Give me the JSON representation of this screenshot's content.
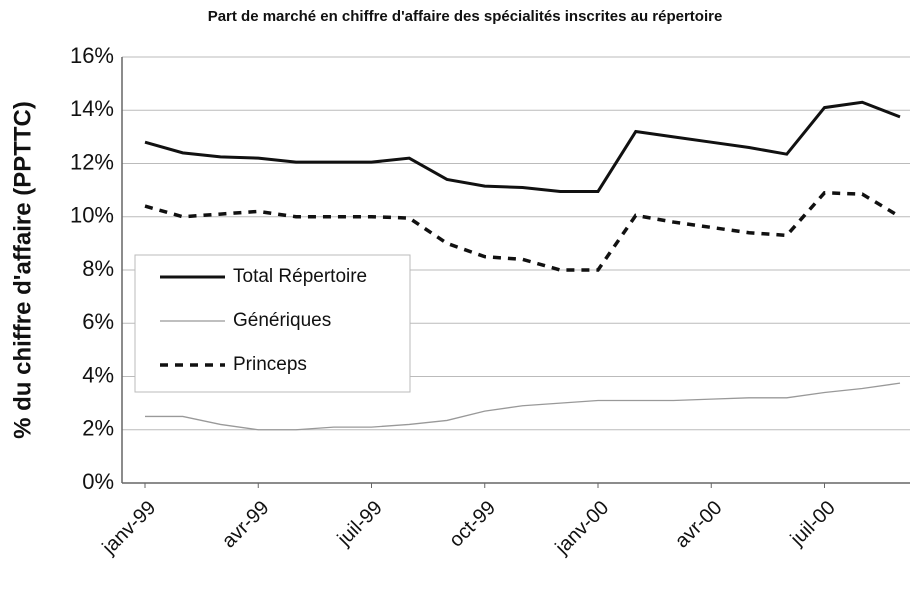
{
  "chart_data": {
    "type": "line",
    "title": "Part de marché en chiffre d'affaire des spécialités inscrites au répertoire",
    "y_label": "% du chiffre d'affaire (PPTTC)",
    "categories": [
      "janv-99",
      null,
      null,
      "avr-99",
      null,
      null,
      "juil-99",
      null,
      null,
      "oct-99",
      null,
      null,
      "janv-00",
      null,
      null,
      "avr-00",
      null,
      null,
      "juil-00",
      null,
      null
    ],
    "series": [
      {
        "name": "Total Répertoire",
        "color": "#111111",
        "style": "solid",
        "values": [
          12.8,
          12.4,
          12.25,
          12.2,
          12.05,
          12.05,
          12.05,
          12.2,
          11.4,
          11.15,
          11.1,
          10.95,
          10.95,
          13.2,
          13.0,
          12.8,
          12.6,
          12.35,
          14.1,
          14.3,
          13.75
        ]
      },
      {
        "name": "Génériques",
        "color": "#999999",
        "style": "thin",
        "values": [
          2.5,
          2.5,
          2.2,
          2.0,
          2.0,
          2.1,
          2.1,
          2.2,
          2.35,
          2.7,
          2.9,
          3.0,
          3.1,
          3.1,
          3.1,
          3.15,
          3.2,
          3.2,
          3.4,
          3.55,
          3.75
        ]
      },
      {
        "name": "Princeps",
        "color": "#111111",
        "style": "dashed",
        "values": [
          10.4,
          10.0,
          10.1,
          10.2,
          10.0,
          10.0,
          10.0,
          9.95,
          9.0,
          8.5,
          8.4,
          8.0,
          8.0,
          10.05,
          9.8,
          9.6,
          9.4,
          9.3,
          10.9,
          10.85,
          10.0
        ]
      }
    ],
    "ylim": [
      0,
      16
    ],
    "yticks": [
      {
        "value": 0,
        "label": "0%"
      },
      {
        "value": 2,
        "label": "2%"
      },
      {
        "value": 4,
        "label": "4%"
      },
      {
        "value": 6,
        "label": "6%"
      },
      {
        "value": 8,
        "label": "8%"
      },
      {
        "value": 10,
        "label": "10%"
      },
      {
        "value": 12,
        "label": "12%"
      },
      {
        "value": 14,
        "label": "14%"
      },
      {
        "value": 16,
        "label": "16%"
      }
    ],
    "grid": true,
    "legend": "left"
  }
}
